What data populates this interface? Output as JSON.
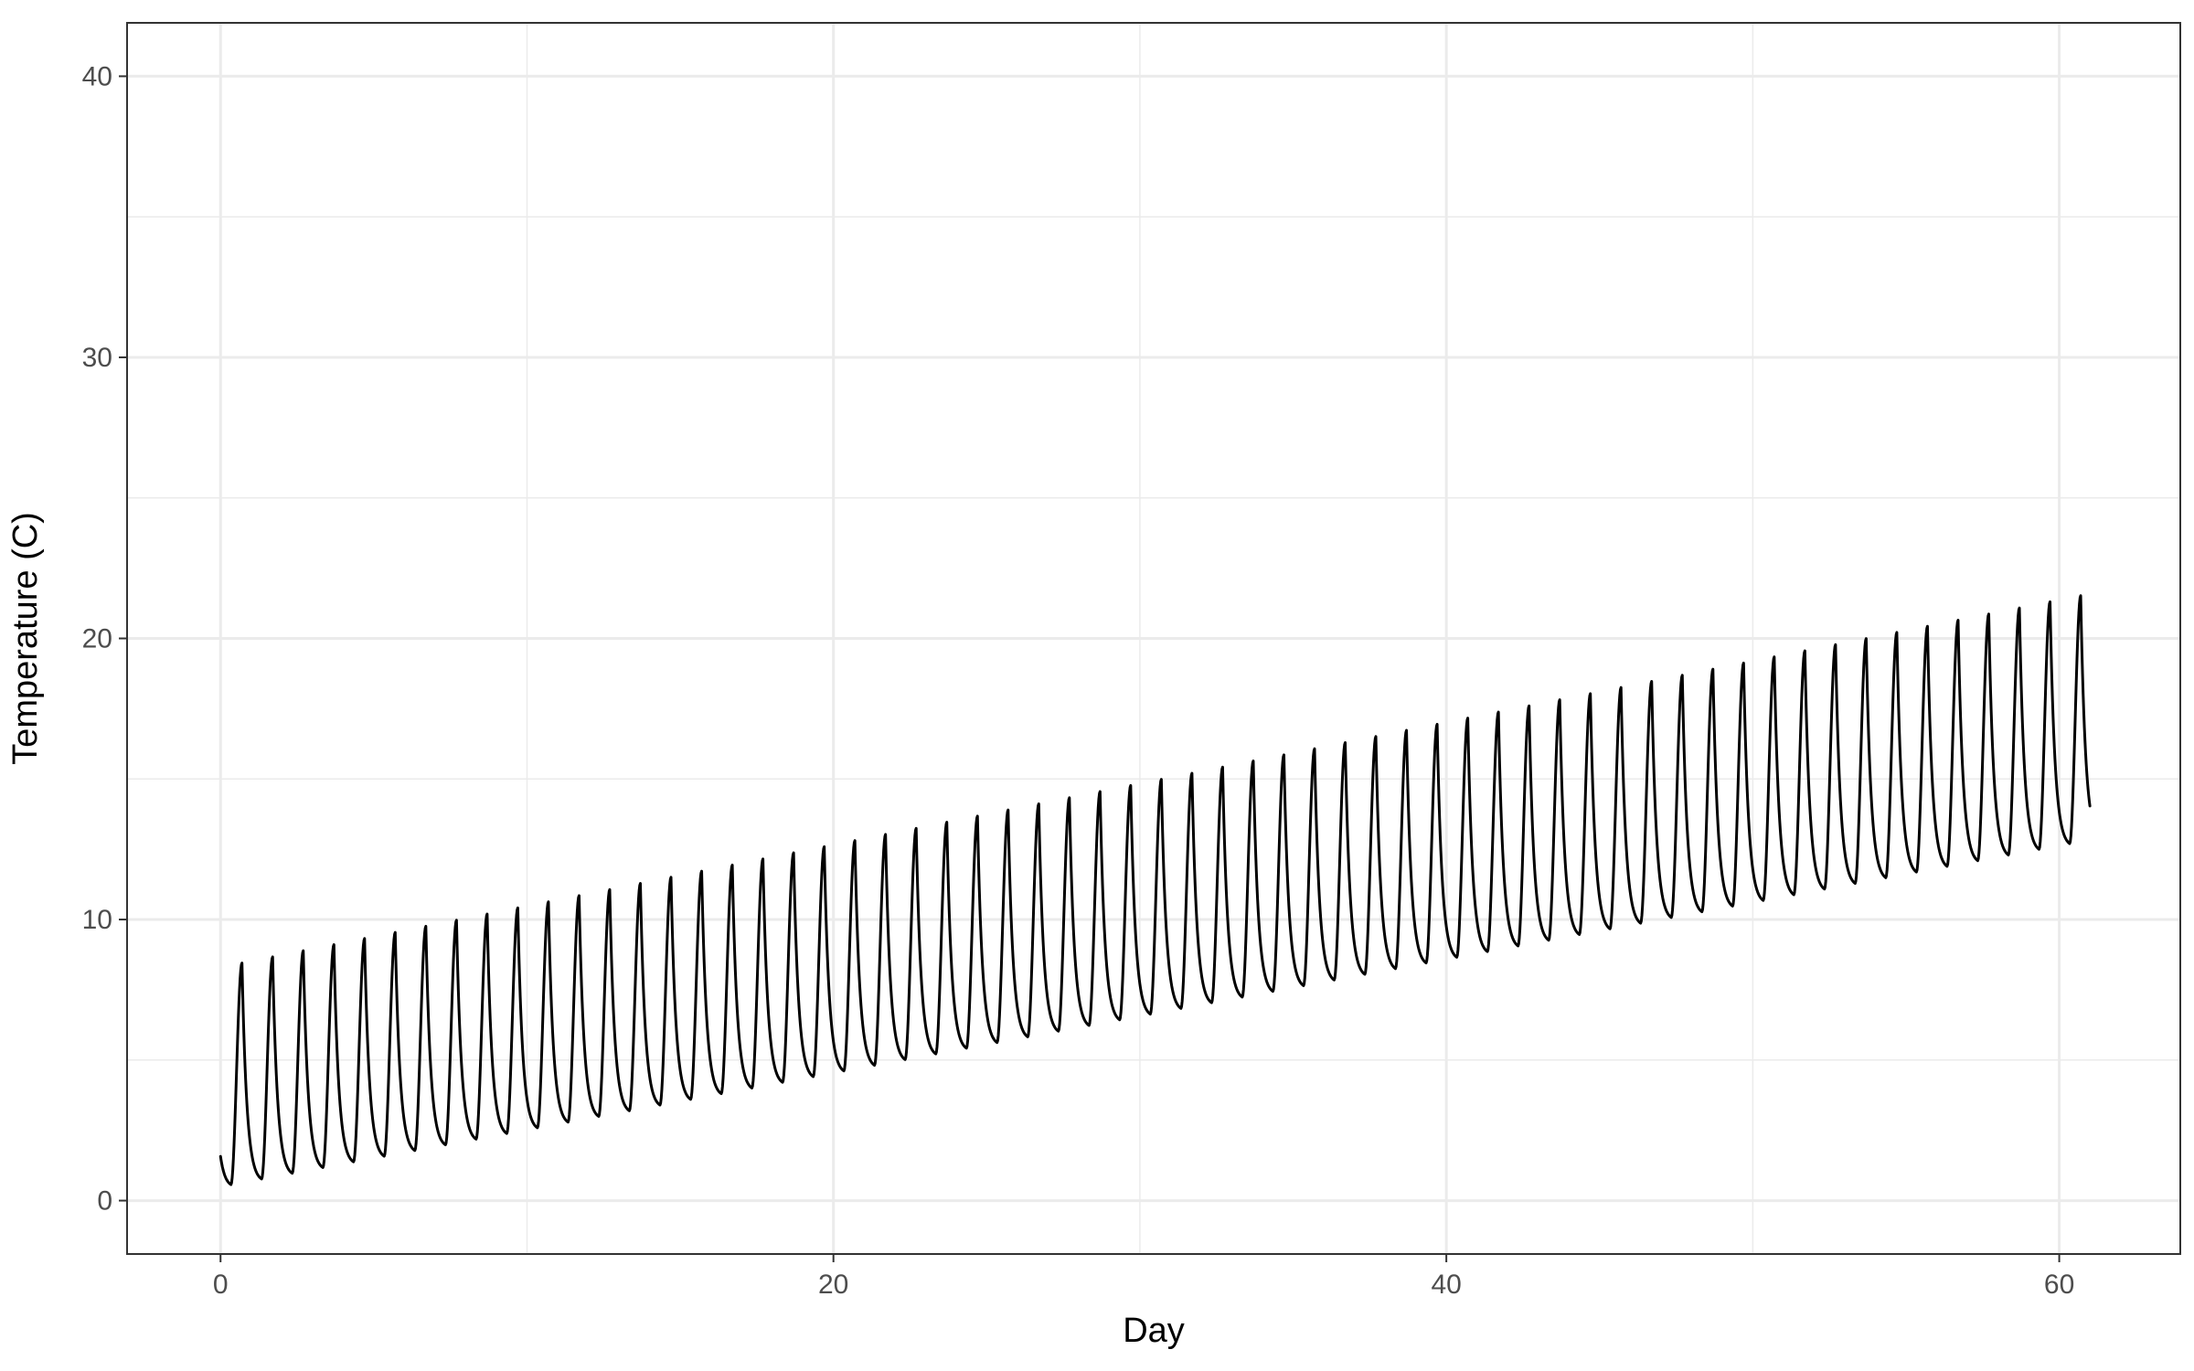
{
  "chart_data": {
    "type": "line",
    "title": "",
    "xlabel": "Day",
    "ylabel": "Temperature (C)",
    "xlim": [
      -3.05,
      63.95
    ],
    "ylim": [
      -1.9,
      41.9
    ],
    "x_ticks": [
      0,
      20,
      40,
      60
    ],
    "y_ticks": [
      0,
      10,
      20,
      30,
      40
    ],
    "x_minor_ticks": [
      10,
      30,
      50
    ],
    "y_minor_ticks": [
      5,
      15,
      25,
      35
    ],
    "grid": true,
    "legend": "none",
    "line_color": "#000000",
    "series": [
      {
        "x_start": 0,
        "x_end": 61,
        "step_per_point": 0.02,
        "trend_start": 4.4,
        "trend_slope": 0.21,
        "amplitude_start": 3.9,
        "amplitude_slope": 0.0078,
        "period_days": 1,
        "peak_phase_days": 0.7,
        "min_phase_days": 0.34,
        "description_of_points": "daily cycle: sharp rise to a peak near x+0.7, fast drop, slow decay to a minimum near x+0.34"
      }
    ]
  }
}
